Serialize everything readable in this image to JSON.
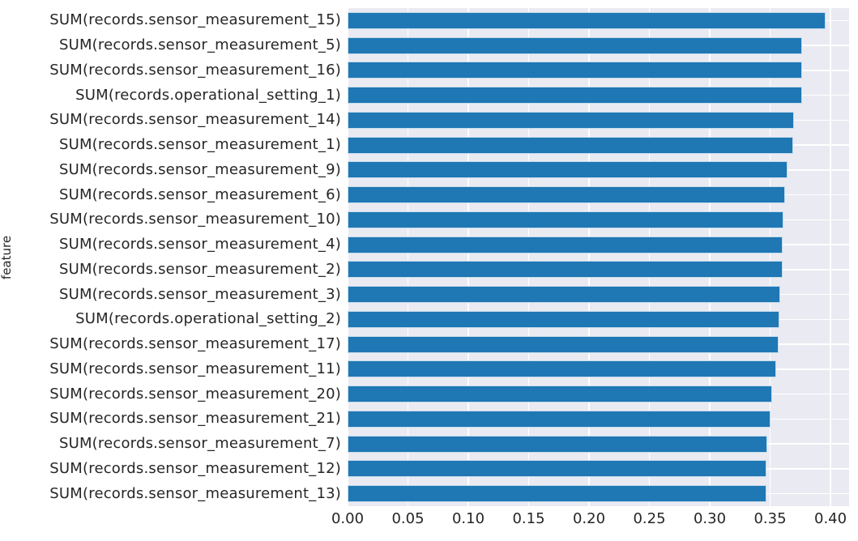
{
  "chart_data": {
    "type": "bar",
    "orientation": "horizontal",
    "title": "",
    "xlabel": "",
    "ylabel": "feature",
    "legend": null,
    "grid": true,
    "xlim": [
      0,
      0.4154
    ],
    "xticks": [
      0.0,
      0.05,
      0.1,
      0.15,
      0.2,
      0.25,
      0.3,
      0.35,
      0.4
    ],
    "xtick_labels": [
      "0.00",
      "0.05",
      "0.10",
      "0.15",
      "0.20",
      "0.25",
      "0.30",
      "0.35",
      "0.40"
    ],
    "categories": [
      "SUM(records.sensor_measurement_15)",
      "SUM(records.sensor_measurement_5)",
      "SUM(records.sensor_measurement_16)",
      "SUM(records.operational_setting_1)",
      "SUM(records.sensor_measurement_14)",
      "SUM(records.sensor_measurement_1)",
      "SUM(records.sensor_measurement_9)",
      "SUM(records.sensor_measurement_6)",
      "SUM(records.sensor_measurement_10)",
      "SUM(records.sensor_measurement_4)",
      "SUM(records.sensor_measurement_2)",
      "SUM(records.sensor_measurement_3)",
      "SUM(records.operational_setting_2)",
      "SUM(records.sensor_measurement_17)",
      "SUM(records.sensor_measurement_11)",
      "SUM(records.sensor_measurement_20)",
      "SUM(records.sensor_measurement_21)",
      "SUM(records.sensor_measurement_7)",
      "SUM(records.sensor_measurement_12)",
      "SUM(records.sensor_measurement_13)"
    ],
    "values": [
      0.396,
      0.3768,
      0.3766,
      0.3762,
      0.37,
      0.3692,
      0.3643,
      0.3623,
      0.3608,
      0.3604,
      0.3601,
      0.3584,
      0.3576,
      0.3572,
      0.3549,
      0.3517,
      0.3503,
      0.3475,
      0.3472,
      0.3469
    ],
    "colors": {
      "bar": "#1f77b4",
      "plot_background": "#eaeaf2",
      "grid": "#ffffff",
      "text": "#262626",
      "figure_background": "#ffffff"
    }
  }
}
